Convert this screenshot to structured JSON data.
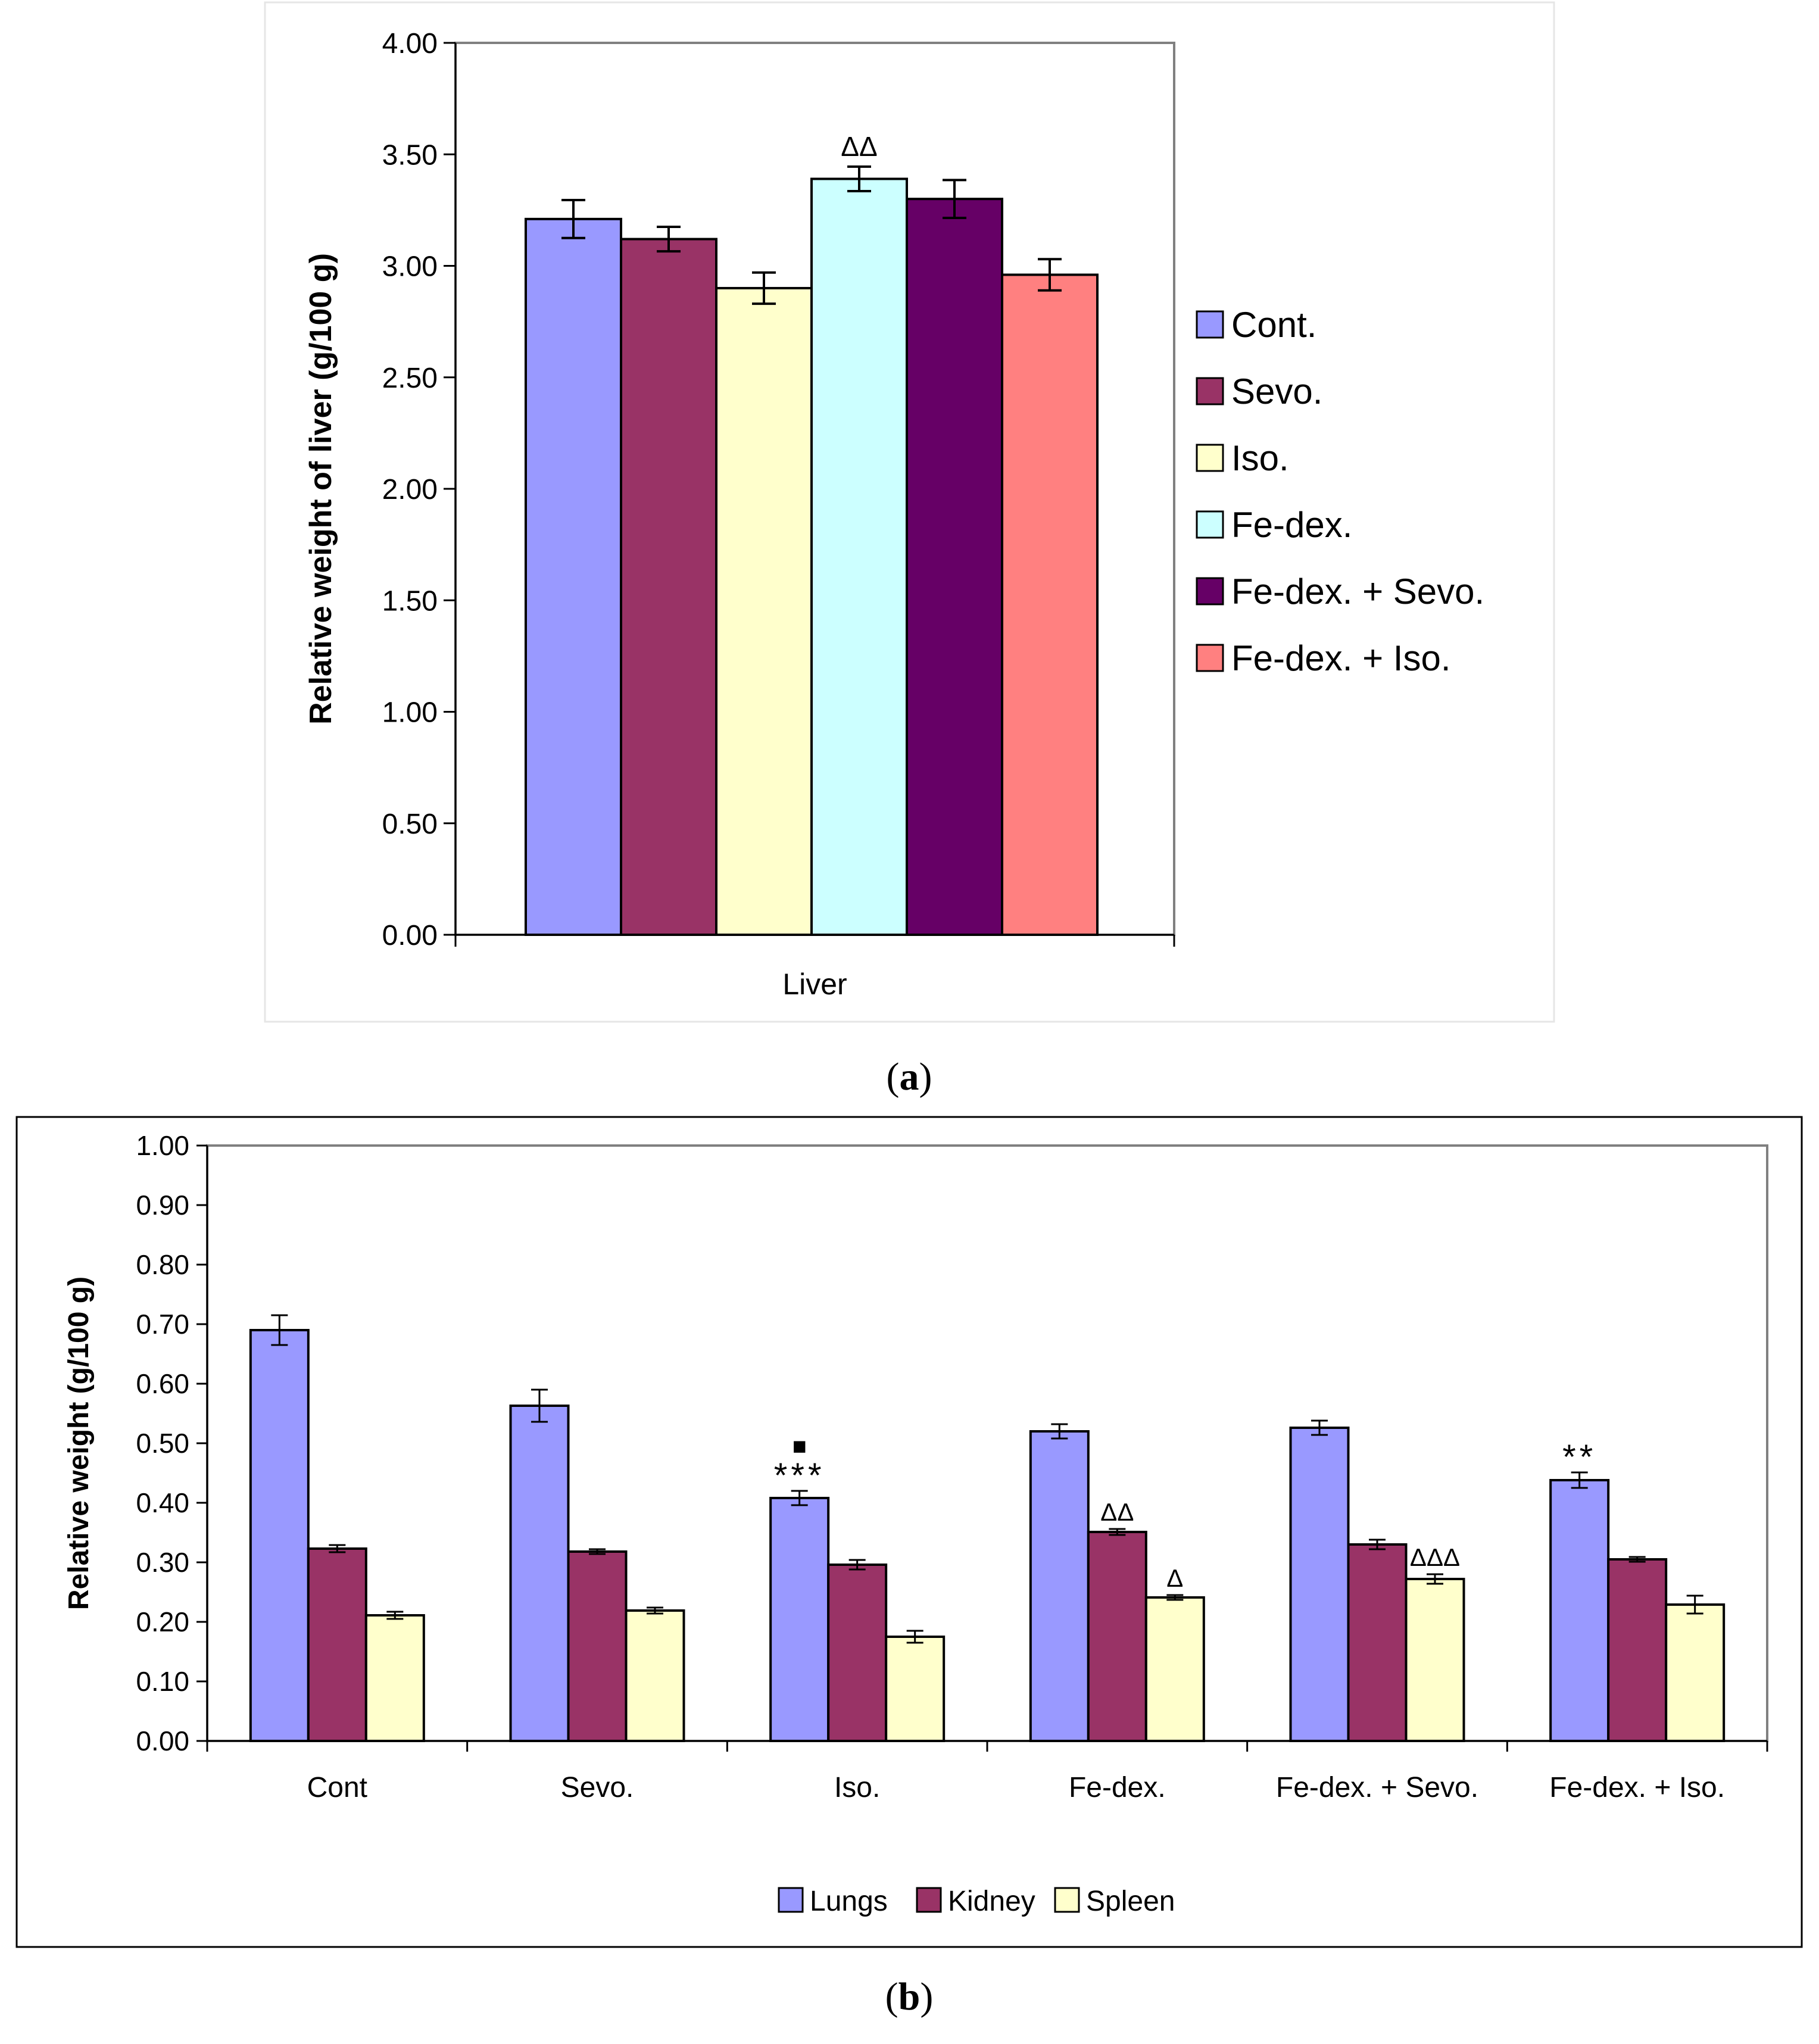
{
  "chart_data": [
    {
      "type": "bar",
      "panel": "a",
      "caption_open": "(",
      "caption_letter": "a",
      "caption_close": ")",
      "title": "",
      "xlabel": "",
      "ylabel": "Relative weight of liver (g/100 g)",
      "ylim": [
        0,
        4
      ],
      "yticks": [
        "0.00",
        "0.50",
        "1.00",
        "1.50",
        "2.00",
        "2.50",
        "3.00",
        "3.50",
        "4.00"
      ],
      "categories": [
        "Liver"
      ],
      "legend_position": "right",
      "series": [
        {
          "name": "Cont.",
          "color": "#9999ff",
          "values": [
            3.21
          ],
          "errors": [
            0.085
          ],
          "annotations": [
            ""
          ]
        },
        {
          "name": "Sevo.",
          "color": "#993366",
          "values": [
            3.12
          ],
          "errors": [
            0.055
          ],
          "annotations": [
            ""
          ]
        },
        {
          "name": "Iso.",
          "color": "#ffffcc",
          "values": [
            2.9
          ],
          "errors": [
            0.07
          ],
          "annotations": [
            ""
          ]
        },
        {
          "name": "Fe-dex.",
          "color": "#ccffff",
          "values": [
            3.39
          ],
          "errors": [
            0.055
          ],
          "annotations": [
            "ΔΔ"
          ]
        },
        {
          "name": "Fe-dex. + Sevo.",
          "color": "#660066",
          "values": [
            3.3
          ],
          "errors": [
            0.085
          ],
          "annotations": [
            ""
          ]
        },
        {
          "name": "Fe-dex. + Iso.",
          "color": "#ff8080",
          "values": [
            2.96
          ],
          "errors": [
            0.07
          ],
          "annotations": [
            ""
          ]
        }
      ]
    },
    {
      "type": "bar",
      "panel": "b",
      "caption_open": "(",
      "caption_letter": "b",
      "caption_close": ")",
      "title": "",
      "xlabel": "",
      "ylabel": "Relative weight (g/100 g)",
      "ylim": [
        0,
        1
      ],
      "yticks": [
        "0.00",
        "0.10",
        "0.20",
        "0.30",
        "0.40",
        "0.50",
        "0.60",
        "0.70",
        "0.80",
        "0.90",
        "1.00"
      ],
      "categories": [
        "Cont",
        "Sevo.",
        "Iso.",
        "Fe-dex.",
        "Fe-dex. + Sevo.",
        "Fe-dex. + Iso."
      ],
      "legend_position": "bottom",
      "series": [
        {
          "name": "Lungs",
          "color": "#9999ff",
          "values": [
            0.69,
            0.563,
            0.408,
            0.52,
            0.526,
            0.438
          ],
          "errors": [
            0.025,
            0.027,
            0.012,
            0.012,
            0.012,
            0.013
          ],
          "annotations": [
            "",
            "",
            "***",
            "",
            "",
            "**"
          ]
        },
        {
          "name": "Kidney",
          "color": "#993366",
          "values": [
            0.323,
            0.318,
            0.296,
            0.351,
            0.33,
            0.305
          ],
          "errors": [
            0.006,
            0.004,
            0.008,
            0.005,
            0.008,
            0.004
          ],
          "annotations": [
            "",
            "",
            "",
            "ΔΔ",
            "",
            ""
          ]
        },
        {
          "name": "Spleen",
          "color": "#ffffcc",
          "values": [
            0.211,
            0.219,
            0.175,
            0.241,
            0.272,
            0.229
          ],
          "errors": [
            0.006,
            0.005,
            0.01,
            0.004,
            0.008,
            0.015
          ],
          "annotations": [
            "",
            "",
            "",
            "Δ",
            "ΔΔΔ",
            ""
          ]
        }
      ],
      "extra_markers": [
        {
          "category": "Iso.",
          "series": "Lungs",
          "symbol": "■"
        }
      ]
    }
  ]
}
